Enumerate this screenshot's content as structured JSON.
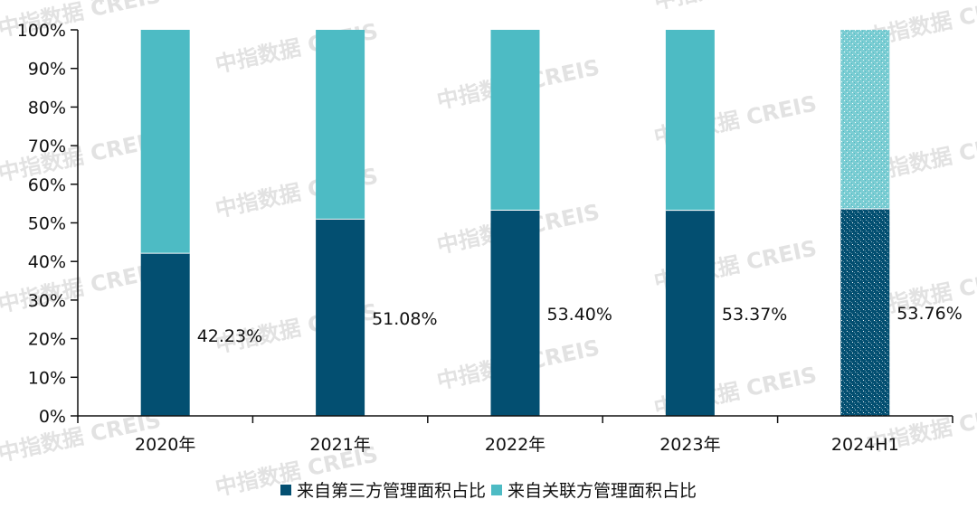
{
  "chart_data": {
    "type": "bar",
    "stacked": true,
    "title": "",
    "xlabel": "",
    "ylabel": "",
    "ylim": [
      0,
      100
    ],
    "yticks": [
      "0%",
      "10%",
      "20%",
      "30%",
      "40%",
      "50%",
      "60%",
      "70%",
      "80%",
      "90%",
      "100%"
    ],
    "categories": [
      "2020年",
      "2021年",
      "2022年",
      "2023年",
      "2024H1"
    ],
    "series": [
      {
        "name": "来自第三方管理面积占比",
        "color": "#034F71",
        "values": [
          42.23,
          51.08,
          53.4,
          53.37,
          53.76
        ]
      },
      {
        "name": "来自关联方管理面积占比",
        "color": "#4DBBC4",
        "values": [
          57.77,
          48.92,
          46.6,
          46.63,
          46.24
        ]
      }
    ],
    "data_labels": [
      "42.23%",
      "51.08%",
      "53.40%",
      "53.37%",
      "53.76%"
    ],
    "patterned_categories": [
      "2024H1"
    ],
    "legend_position": "bottom",
    "grid": false
  },
  "legend": {
    "items": [
      {
        "label": "来自第三方管理面积占比",
        "color": "#034F71"
      },
      {
        "label": "来自关联方管理面积占比",
        "color": "#4DBBC4"
      }
    ]
  },
  "watermark": {
    "text_cn": "中指数据",
    "text_en": "CREIS"
  }
}
